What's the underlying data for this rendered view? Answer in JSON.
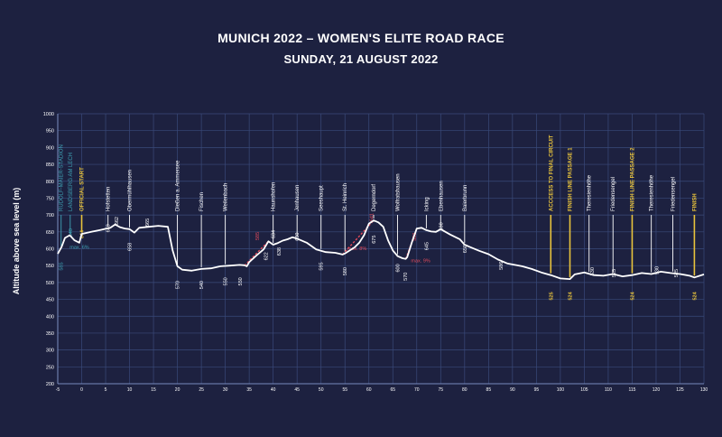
{
  "title": "MUNICH 2022 – WOMEN'S ELITE ROAD RACE",
  "subtitle": "SUNDAY, 21 AUGUST 2022",
  "chart_data": {
    "type": "area",
    "xlim": [
      -5,
      130
    ],
    "ylim": [
      200,
      1000
    ],
    "ylabel": "Altitude above sea level (m)",
    "xticks": [
      -5,
      0,
      5,
      10,
      15,
      20,
      25,
      30,
      35,
      40,
      45,
      50,
      55,
      60,
      65,
      70,
      75,
      80,
      85,
      90,
      95,
      100,
      105,
      110,
      115,
      120,
      125,
      130
    ],
    "yticks": [
      200,
      250,
      300,
      350,
      400,
      450,
      500,
      550,
      600,
      650,
      700,
      750,
      800,
      850,
      900,
      950,
      1000
    ],
    "profile": [
      [
        -5,
        585
      ],
      [
        -4.2,
        605
      ],
      [
        -3.5,
        632
      ],
      [
        -2.5,
        640
      ],
      [
        -1.5,
        625
      ],
      [
        -0.5,
        618
      ],
      [
        0,
        644
      ],
      [
        2,
        650
      ],
      [
        4,
        656
      ],
      [
        5,
        659
      ],
      [
        6,
        662
      ],
      [
        7,
        672
      ],
      [
        8,
        664
      ],
      [
        9,
        660
      ],
      [
        10,
        658
      ],
      [
        11,
        648
      ],
      [
        12,
        662
      ],
      [
        14,
        665
      ],
      [
        16,
        668
      ],
      [
        18,
        665
      ],
      [
        19,
        595
      ],
      [
        20,
        548
      ],
      [
        21,
        538
      ],
      [
        23,
        535
      ],
      [
        25,
        540
      ],
      [
        27,
        542
      ],
      [
        29,
        548
      ],
      [
        31,
        550
      ],
      [
        33,
        552
      ],
      [
        34,
        551
      ],
      [
        34.5,
        548
      ],
      [
        35,
        560
      ],
      [
        36.5,
        580
      ],
      [
        38,
        598
      ],
      [
        39,
        622
      ],
      [
        40,
        612
      ],
      [
        41,
        617
      ],
      [
        42,
        624
      ],
      [
        43,
        628
      ],
      [
        44,
        634
      ],
      [
        45,
        630
      ],
      [
        47,
        618
      ],
      [
        49,
        598
      ],
      [
        51,
        590
      ],
      [
        53,
        588
      ],
      [
        54.5,
        583
      ],
      [
        55,
        586
      ],
      [
        57,
        604
      ],
      [
        58,
        618
      ],
      [
        59,
        640
      ],
      [
        60,
        674
      ],
      [
        61,
        684
      ],
      [
        62,
        678
      ],
      [
        63,
        665
      ],
      [
        64,
        625
      ],
      [
        65,
        595
      ],
      [
        66,
        578
      ],
      [
        67,
        572
      ],
      [
        67.7,
        570
      ],
      [
        68,
        575
      ],
      [
        69,
        620
      ],
      [
        70,
        660
      ],
      [
        71,
        662
      ],
      [
        72,
        655
      ],
      [
        73,
        651
      ],
      [
        74,
        650
      ],
      [
        75,
        658
      ],
      [
        77,
        642
      ],
      [
        79,
        628
      ],
      [
        80,
        612
      ],
      [
        81,
        606
      ],
      [
        83,
        594
      ],
      [
        85,
        584
      ],
      [
        87,
        568
      ],
      [
        89,
        556
      ],
      [
        92,
        548
      ],
      [
        94,
        540
      ],
      [
        96,
        530
      ],
      [
        98,
        522
      ],
      [
        100,
        512
      ],
      [
        102,
        510
      ],
      [
        103,
        524
      ],
      [
        105,
        530
      ],
      [
        107,
        522
      ],
      [
        109,
        520
      ],
      [
        111,
        525
      ],
      [
        113,
        518
      ],
      [
        115,
        522
      ],
      [
        117,
        528
      ],
      [
        119,
        525
      ],
      [
        121,
        532
      ],
      [
        123,
        528
      ],
      [
        125,
        525
      ],
      [
        127,
        520
      ],
      [
        128,
        515
      ],
      [
        130,
        524
      ]
    ],
    "climbs": [
      {
        "label": "585",
        "x_start": 34,
        "x_end": 39,
        "y_start": 550,
        "y_end": 622,
        "peak_x": 36.7,
        "peak_y": 585
      },
      {
        "label": "641",
        "x_start": 54.5,
        "x_end": 61,
        "y_start": 583,
        "y_end": 684,
        "peak_x": 60.5,
        "peak_y": 641
      },
      {
        "label": "583",
        "x_start": 67.7,
        "x_end": 70,
        "y_start": 570,
        "y_end": 660,
        "peak_x": 69.5,
        "peak_y": 583
      }
    ],
    "gradients": [
      {
        "label": "max. 6%",
        "x": -2.5,
        "y": 600,
        "color": "#3fa3b5"
      },
      {
        "label": "max. 8%",
        "x": 55.5,
        "y": 596,
        "color": "#e14a5a"
      },
      {
        "label": "max. 9%",
        "x": 68.8,
        "y": 560,
        "color": "#e14a5a"
      }
    ],
    "locations": [
      {
        "name": "RUDOLF-MAIER-STADION",
        "x": -4.3,
        "color": "#3fa3b5",
        "elev": "585",
        "elev_y": 560,
        "emph": false
      },
      {
        "name": "LANDSBERG AM LECH",
        "x": -2.4,
        "color": "#3fa3b5",
        "elev": "640",
        "elev_y": 660,
        "emph": false
      },
      {
        "name": "OFFICIAL START",
        "x": 0,
        "color": "#e8c33c",
        "elev": "644",
        "elev_y": 655,
        "emph": true
      },
      {
        "name": "Hofstetten",
        "x": 5.5,
        "color": "#ffffff",
        "elev": "659",
        "elev_y": 673,
        "emph": false
      },
      {
        "name": "Obermühlhausen",
        "x": 10,
        "color": "#ffffff",
        "elev": "658",
        "elev_y": 618,
        "emph": false
      },
      {
        "name": "Dießen a. Ammersee",
        "x": 20,
        "color": "#ffffff",
        "elev": "570",
        "elev_y": 505,
        "emph": false
      },
      {
        "name": "Fischen",
        "x": 25,
        "color": "#ffffff",
        "elev": "540",
        "elev_y": 505,
        "emph": false
      },
      {
        "name": "Weilenbach",
        "x": 30,
        "color": "#ffffff",
        "elev": "550",
        "elev_y": 515,
        "emph": false
      },
      {
        "name": "Haunshofen",
        "x": 40,
        "color": "#ffffff",
        "elev": "634",
        "elev_y": 655,
        "emph": false
      },
      {
        "name": "Jenhausen",
        "x": 45,
        "color": "#ffffff",
        "elev": "630",
        "elev_y": 648,
        "emph": false
      },
      {
        "name": "Seeshaupt",
        "x": 50,
        "color": "#ffffff",
        "elev": "595",
        "elev_y": 560,
        "emph": false
      },
      {
        "name": "St. Heinrich",
        "x": 55,
        "color": "#ffffff",
        "elev": "580",
        "elev_y": 545,
        "emph": false
      },
      {
        "name": "Degerndorf",
        "x": 61,
        "color": "#ffffff",
        "elev": "675",
        "elev_y": 640,
        "emph": false
      },
      {
        "name": "Wolfratshausen",
        "x": 66,
        "color": "#ffffff",
        "elev": "600",
        "elev_y": 555,
        "emph": false
      },
      {
        "name": "Icking",
        "x": 72,
        "color": "#ffffff",
        "elev": "645",
        "elev_y": 620,
        "emph": false
      },
      {
        "name": "Ebenhausen",
        "x": 75,
        "color": "#ffffff",
        "elev": "660",
        "elev_y": 678,
        "emph": false
      },
      {
        "name": "Baierbrunn",
        "x": 80,
        "color": "#ffffff",
        "elev": "650",
        "elev_y": 612,
        "emph": false
      },
      {
        "name": "ACCCESS TO FINAL CIRCUIT",
        "x": 98,
        "color": "#e8c33c",
        "elev": "525",
        "elev_y": 472,
        "emph": true
      },
      {
        "name": "FINISH LINE PASSAGE 1",
        "x": 102,
        "color": "#e8c33c",
        "elev": "524",
        "elev_y": 472,
        "emph": true
      },
      {
        "name": "Theresienhöhe",
        "x": 106,
        "color": "#ffffff",
        "elev": "",
        "elev_y": 0,
        "emph": false
      },
      {
        "name": "Friedensengel",
        "x": 111,
        "color": "#ffffff",
        "elev": "",
        "elev_y": 0,
        "emph": false
      },
      {
        "name": "FINISH LINE PASSAGE 2",
        "x": 115,
        "color": "#e8c33c",
        "elev": "524",
        "elev_y": 472,
        "emph": true
      },
      {
        "name": "Theresienhöhe",
        "x": 119,
        "color": "#ffffff",
        "elev": "",
        "elev_y": 0,
        "emph": false
      },
      {
        "name": "Friedensengel",
        "x": 123.5,
        "color": "#ffffff",
        "elev": "",
        "elev_y": 0,
        "emph": false
      },
      {
        "name": "FINISH",
        "x": 128,
        "color": "#e8c33c",
        "elev": "524",
        "elev_y": 472,
        "emph": true
      }
    ],
    "extra_labels": [
      {
        "label": "662",
        "x": 7.6,
        "y": 695
      },
      {
        "label": "665",
        "x": 14,
        "y": 690
      },
      {
        "label": "550",
        "x": 33.5,
        "y": 515
      },
      {
        "label": "622",
        "x": 38.8,
        "y": 590
      },
      {
        "label": "638",
        "x": 41.6,
        "y": 604
      },
      {
        "label": "570",
        "x": 68,
        "y": 530
      },
      {
        "label": "586",
        "x": 88,
        "y": 562
      },
      {
        "label": "530",
        "x": 107,
        "y": 545
      },
      {
        "label": "525",
        "x": 111.5,
        "y": 540
      },
      {
        "label": "530",
        "x": 120.5,
        "y": 548
      },
      {
        "label": "525",
        "x": 124.5,
        "y": 540
      }
    ]
  }
}
